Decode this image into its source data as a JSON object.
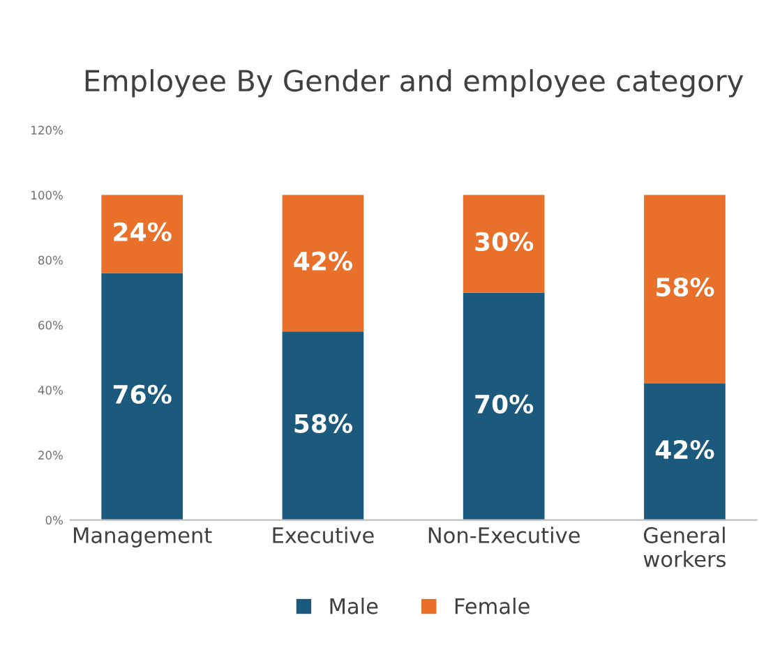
{
  "chart_data": {
    "type": "bar",
    "title": "Employee By Gender and employee category",
    "categories": [
      "Management",
      "Executive",
      "Non-Executive",
      "General\nworkers"
    ],
    "stacked": true,
    "ylim": [
      0,
      120
    ],
    "yticks": [
      {
        "value": 0,
        "label": "0%"
      },
      {
        "value": 20,
        "label": "20%"
      },
      {
        "value": 40,
        "label": "40%"
      },
      {
        "value": 60,
        "label": "60%"
      },
      {
        "value": 80,
        "label": "80%"
      },
      {
        "value": 100,
        "label": "100%"
      },
      {
        "value": 120,
        "label": "120%"
      }
    ],
    "series": [
      {
        "name": "Male",
        "color": "#1b5a7d",
        "values": [
          76,
          58,
          70,
          42
        ],
        "value_labels": [
          "76%",
          "58%",
          "70%",
          "42%"
        ]
      },
      {
        "name": "Female",
        "color": "#e8702a",
        "values": [
          24,
          42,
          30,
          58
        ],
        "value_labels": [
          "24%",
          "42%",
          "30%",
          "58%"
        ]
      }
    ],
    "legend": "bottom",
    "grid": false
  }
}
